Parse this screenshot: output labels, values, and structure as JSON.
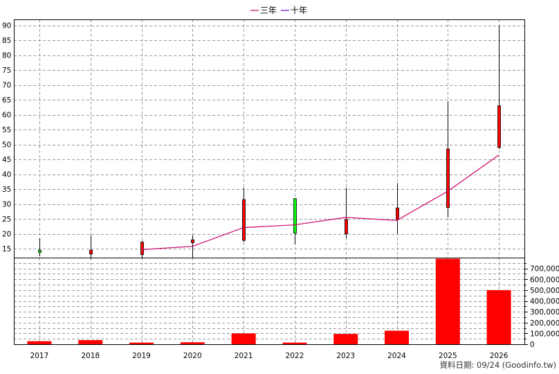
{
  "source_text": "資料日期: 09/24  (Goodinfo.tw)",
  "colors": {
    "up": "#ff0000",
    "down": "#00ff00",
    "wick": "#000000",
    "volume": "#ff0000",
    "line_3y": "#cc0066",
    "line_10y": "#6600cc",
    "grid": "#999999"
  },
  "chart_data": {
    "type": "candlestick",
    "categories": [
      "2017",
      "2018",
      "2019",
      "2020",
      "2021",
      "2022",
      "2023",
      "2024",
      "2025",
      "2026"
    ],
    "legend": [
      {
        "name": "三年",
        "color": "#cc0066"
      },
      {
        "name": "十年",
        "color": "#6600cc"
      }
    ],
    "price_ylim": [
      12,
      92
    ],
    "price_yticks": [
      15,
      20,
      25,
      30,
      35,
      40,
      45,
      50,
      55,
      60,
      65,
      70,
      75,
      80,
      85,
      90
    ],
    "volume_ylim": [
      0,
      800000
    ],
    "volume_yticks": [
      0,
      100000,
      200000,
      300000,
      400000,
      500000,
      600000,
      700000
    ],
    "volume_ytick_labels": [
      "0",
      "100,000",
      "200,000",
      "300,000",
      "400,000",
      "500,000",
      "600,000",
      "700,000"
    ],
    "candles": [
      {
        "year": "2017",
        "open": 14.5,
        "close": 13.8,
        "high": 18.5,
        "low": 12.5
      },
      {
        "year": "2018",
        "open": 13.2,
        "close": 14.5,
        "high": 19.5,
        "low": 11.5
      },
      {
        "year": "2019",
        "open": 13.0,
        "close": 17.2,
        "high": 17.6,
        "low": 11.8
      },
      {
        "year": "2020",
        "open": 17.0,
        "close": 18.0,
        "high": 19.5,
        "low": 12.0
      },
      {
        "year": "2021",
        "open": 17.8,
        "close": 31.5,
        "high": 35.5,
        "low": 17.3
      },
      {
        "year": "2022",
        "open": 31.8,
        "close": 20.2,
        "high": 32.0,
        "low": 16.5
      },
      {
        "year": "2023",
        "open": 20.0,
        "close": 24.8,
        "high": 35.5,
        "low": 18.5
      },
      {
        "year": "2024",
        "open": 24.8,
        "close": 28.7,
        "high": 37.0,
        "low": 20.0
      },
      {
        "year": "2025",
        "open": 28.8,
        "close": 48.5,
        "high": 64.5,
        "low": 25.5
      },
      {
        "year": "2026",
        "open": 49.0,
        "close": 63.0,
        "high": 90.0,
        "low": 48.5
      }
    ],
    "line_3y": {
      "name": "三年",
      "x": [
        "2019",
        "2020",
        "2021",
        "2022",
        "2023",
        "2024",
        "2025",
        "2026"
      ],
      "values": [
        14.7,
        15.8,
        22.1,
        23.0,
        25.5,
        24.5,
        34.3,
        46.5
      ]
    },
    "volume": {
      "values": [
        28000,
        38000,
        15000,
        18000,
        100000,
        15000,
        95000,
        125000,
        790000,
        500000
      ]
    }
  }
}
